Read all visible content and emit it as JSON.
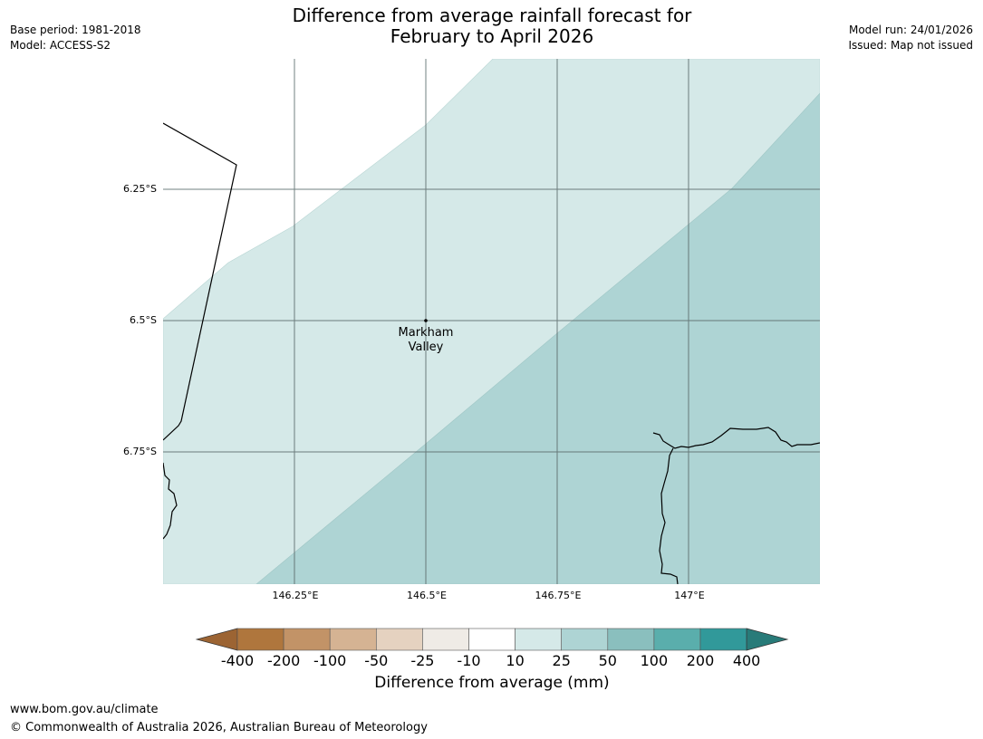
{
  "header": {
    "title_line1": "Difference from average rainfall forecast for",
    "title_line2": "February to April 2026",
    "base_period": "Base period: 1981-2018",
    "model": "Model: ACCESS-S2",
    "model_run": "Model run: 24/01/2026",
    "issued": "Issued: Map not issued"
  },
  "map": {
    "latitude_labels": [
      "6.25°S",
      "6.5°S",
      "6.75°S"
    ],
    "longitude_labels": [
      "146.25°E",
      "146.5°E",
      "146.75°E",
      "147°E"
    ],
    "place": {
      "name_line1": "Markham",
      "name_line2": "Valley"
    },
    "zones": [
      {
        "category": "10 to 25",
        "color": "#d5e9e8"
      },
      {
        "category": "25 to 50",
        "color": "#aed4d4"
      }
    ],
    "grid_color": "#5a6a6a",
    "coastline_color": "#000000"
  },
  "colorbar": {
    "title": "Difference from average (mm)",
    "ticks": [
      "-400",
      "-200",
      "-100",
      "-50",
      "-25",
      "-10",
      "10",
      "25",
      "50",
      "100",
      "200",
      "400"
    ],
    "colors": [
      "#9c6433",
      "#af763d",
      "#c29367",
      "#d5b393",
      "#e5d2c0",
      "#efebe6",
      "#ffffff",
      "#d5e9e8",
      "#aed4d4",
      "#8abfbe",
      "#5aaeac",
      "#31999a",
      "#287b79"
    ]
  },
  "footer": {
    "url": "www.bom.gov.au/climate",
    "copyright": "© Commonwealth of Australia 2026, Australian Bureau of Meteorology"
  }
}
